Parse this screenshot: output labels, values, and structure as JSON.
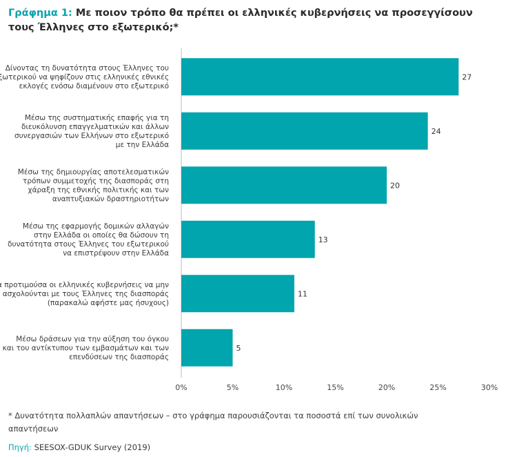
{
  "header": {
    "title_prefix": "Γράφημα 1:",
    "title_text": "Με ποιον τρόπο θα πρέπει οι ελληνικές κυβερνήσεις να προσεγγίσουν τους Έλληνες στο εξωτερικό;*"
  },
  "colors": {
    "bar": "#00a5ae",
    "accent": "#0aa3ae",
    "axis": "#bbbbbb"
  },
  "chart_data": {
    "type": "bar",
    "orientation": "horizontal",
    "categories": [
      [
        "Δίνοντας τη δυνατότητα στους Έλληνες του",
        "εξωτερικού να ψηφίζουν στις ελληνικές εθνικές",
        "εκλογές ενόσω διαμένουν στο εξωτερικό"
      ],
      [
        "Μέσω της συστηματικής επαφής για τη",
        "διευκόλυνση επαγγελματικών και άλλων",
        "συνεργασιών των Ελλήνων στο εξωτερικό",
        "με την Ελλάδα"
      ],
      [
        "Μέσω της δημιουργίας αποτελεσματικών",
        "τρόπων συμμετοχής της διασποράς στη",
        "χάραξη της εθνικής πολιτικής και των",
        "αναπτυξιακών δραστηριοτήτων"
      ],
      [
        "Μέσω της εφαρμογής δομικών αλλαγών",
        "στην Ελλάδα οι οποίες θα δώσουν τη",
        "δυνατότητα στους Έλληνες του εξωτερικού",
        "να επιστρέψουν στην Ελλάδα"
      ],
      [
        "Θα προτιμούσα οι ελληνικές κυβερνήσεις να μην",
        "ασχολούνται με τους Έλληνες της διασποράς",
        "(παρακαλώ αφήστε μας ήσυχους)"
      ],
      [
        "Μέσω δράσεων για την αύξηση του όγκου",
        "και του αντίκτυπου των εμβασμάτων και των",
        "επενδύσεων της διασποράς"
      ]
    ],
    "values": [
      27,
      24,
      20,
      13,
      11,
      5
    ],
    "value_labels": [
      "27",
      "24",
      "20",
      "13",
      "11",
      "5"
    ],
    "xlim": [
      0,
      30
    ],
    "x_ticks": [
      0,
      5,
      10,
      15,
      20,
      25,
      30
    ],
    "x_tick_labels": [
      "0%",
      "5%",
      "10%",
      "15%",
      "20%",
      "25%",
      "30%"
    ],
    "grid": false,
    "legend": "none"
  },
  "footnote": "* Δυνατότητα πολλαπλών απαντήσεων – στο γράφημα παρουσιάζονται τα ποσοστά επί των συνολικών απαντήσεων",
  "source": {
    "label": "Πηγή:",
    "text": "SEESOX-GDUK Survey (2019)"
  }
}
